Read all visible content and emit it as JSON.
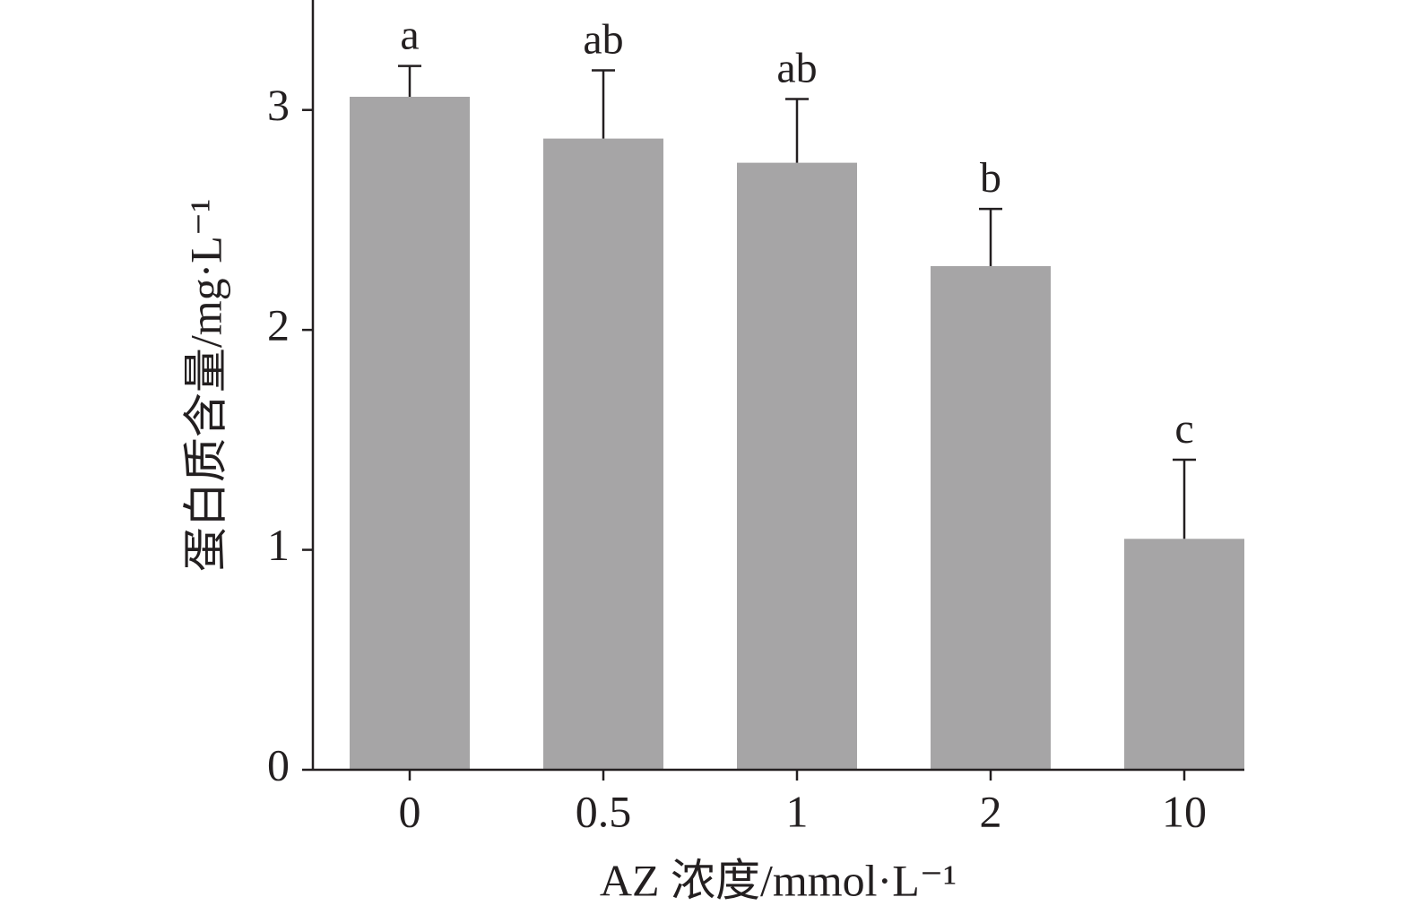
{
  "chart_data": {
    "type": "bar",
    "x_label": "AZ 浓度/mmol·L⁻¹",
    "y_label": "蛋白质含量/mg·L⁻¹",
    "categories": [
      "0",
      "0.5",
      "1",
      "2",
      "10"
    ],
    "values": [
      3.06,
      2.87,
      2.76,
      2.29,
      1.05
    ],
    "errors": [
      0.14,
      0.31,
      0.29,
      0.26,
      0.36
    ],
    "significance": [
      "a",
      "ab",
      "ab",
      "b",
      "c"
    ],
    "color": "#a6a5a6",
    "ylim": [
      0,
      3.5
    ],
    "yticks": [
      0,
      1,
      2,
      3
    ],
    "grid": false
  }
}
